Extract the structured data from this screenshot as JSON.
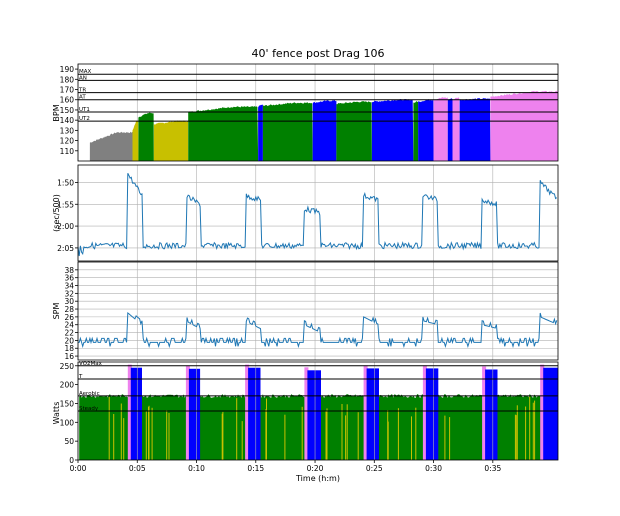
{
  "chart_data": {
    "type": "line",
    "title": "40' fence post Drag 106",
    "xlabel": "Time (h:m)",
    "x_ticks": [
      "0:00",
      "0:05",
      "0:10",
      "0:15",
      "0:20",
      "0:25",
      "0:30",
      "0:35"
    ],
    "x_tick_minutes": [
      0,
      5,
      10,
      15,
      20,
      25,
      30,
      35
    ],
    "x_range_min": [
      0,
      40.5
    ],
    "grid": true,
    "zone_colors": {
      "recovery": "#808080",
      "ut2": "#c8c000",
      "ut1": "#008000",
      "at": "#0000ff",
      "tr": "#ee82ee"
    },
    "hr_panel": {
      "ylabel": "BPM",
      "ylim": [
        100,
        195
      ],
      "yticks": [
        110,
        120,
        130,
        140,
        150,
        160,
        170,
        180,
        190
      ],
      "thresholds": [
        {
          "label": "MAX",
          "value": 185
        },
        {
          "label": "AN",
          "value": 179
        },
        {
          "label": "TR",
          "value": 167
        },
        {
          "label": "AT",
          "value": 160
        },
        {
          "label": "UT1",
          "value": 148
        },
        {
          "label": "UT2",
          "value": 139
        }
      ],
      "segments": [
        {
          "start": 1.0,
          "end": 4.6,
          "zone": "recovery",
          "hr": [
            118,
            128
          ]
        },
        {
          "start": 4.6,
          "end": 5.1,
          "zone": "ut2",
          "hr": [
            130,
            139
          ]
        },
        {
          "start": 5.1,
          "end": 6.4,
          "zone": "ut1",
          "hr": [
            143,
            147
          ]
        },
        {
          "start": 6.4,
          "end": 9.3,
          "zone": "ut2",
          "hr": [
            136,
            139
          ]
        },
        {
          "start": 9.3,
          "end": 15.2,
          "zone": "ut1",
          "hr": [
            148,
            153
          ]
        },
        {
          "start": 15.2,
          "end": 15.6,
          "zone": "at",
          "hr": [
            153,
            155
          ]
        },
        {
          "start": 15.6,
          "end": 19.8,
          "zone": "ut1",
          "hr": [
            154,
            157
          ]
        },
        {
          "start": 19.8,
          "end": 21.8,
          "zone": "at",
          "hr": [
            157,
            159
          ]
        },
        {
          "start": 21.8,
          "end": 24.8,
          "zone": "ut1",
          "hr": [
            156,
            158
          ]
        },
        {
          "start": 24.8,
          "end": 28.3,
          "zone": "at",
          "hr": [
            158,
            160
          ]
        },
        {
          "start": 28.3,
          "end": 28.7,
          "zone": "ut1",
          "hr": [
            157,
            158
          ]
        },
        {
          "start": 28.7,
          "end": 30.0,
          "zone": "at",
          "hr": [
            158,
            160
          ]
        },
        {
          "start": 30.0,
          "end": 31.2,
          "zone": "tr",
          "hr": [
            160,
            162
          ]
        },
        {
          "start": 31.2,
          "end": 31.6,
          "zone": "at",
          "hr": [
            160,
            161
          ]
        },
        {
          "start": 31.6,
          "end": 32.2,
          "zone": "tr",
          "hr": [
            160,
            162
          ]
        },
        {
          "start": 32.2,
          "end": 34.8,
          "zone": "at",
          "hr": [
            160,
            161
          ]
        },
        {
          "start": 34.8,
          "end": 40.5,
          "zone": "tr",
          "hr": [
            163,
            168
          ]
        }
      ]
    },
    "pace_panel": {
      "ylabel": "(sec/500)",
      "ylim_sec": [
        128,
        106
      ],
      "yticks_sec": [
        110,
        115,
        120,
        125
      ],
      "ytick_labels": [
        "1:50",
        "1:55",
        "2:00",
        "2:05"
      ],
      "base_sec": 124.5,
      "intervals": [
        {
          "start": 4.2,
          "end": 5.4,
          "sec": [
            108,
            113
          ]
        },
        {
          "start": 9.1,
          "end": 10.3,
          "sec": [
            113,
            115
          ]
        },
        {
          "start": 14.1,
          "end": 15.4,
          "sec": [
            113,
            114
          ]
        },
        {
          "start": 19.1,
          "end": 20.5,
          "sec": [
            116,
            117
          ]
        },
        {
          "start": 24.1,
          "end": 25.4,
          "sec": [
            113,
            114
          ]
        },
        {
          "start": 29.1,
          "end": 30.4,
          "sec": [
            113,
            114
          ]
        },
        {
          "start": 34.1,
          "end": 35.4,
          "sec": [
            114,
            115
          ]
        },
        {
          "start": 39.0,
          "end": 40.5,
          "sec": [
            110,
            114
          ]
        }
      ]
    },
    "spm_panel": {
      "ylabel": "SPM",
      "ylim": [
        15,
        40
      ],
      "yticks": [
        16,
        18,
        20,
        22,
        24,
        26,
        28,
        30,
        32,
        34,
        36,
        38
      ],
      "base": 19.5,
      "intervals": [
        {
          "start": 4.2,
          "end": 5.4,
          "spm": [
            24,
            27
          ]
        },
        {
          "start": 9.1,
          "end": 10.3,
          "spm": [
            23,
            25
          ]
        },
        {
          "start": 14.1,
          "end": 15.4,
          "spm": [
            23,
            25
          ]
        },
        {
          "start": 19.1,
          "end": 20.5,
          "spm": [
            22,
            24
          ]
        },
        {
          "start": 24.1,
          "end": 25.4,
          "spm": [
            24,
            26
          ]
        },
        {
          "start": 29.1,
          "end": 30.4,
          "spm": [
            24,
            25
          ]
        },
        {
          "start": 34.1,
          "end": 35.4,
          "spm": [
            23,
            24
          ]
        },
        {
          "start": 39.0,
          "end": 40.5,
          "spm": [
            24,
            26
          ]
        }
      ]
    },
    "power_panel": {
      "ylabel": "Watts",
      "ylim": [
        0,
        260
      ],
      "yticks": [
        0,
        50,
        100,
        150,
        200,
        250
      ],
      "thresholds": [
        {
          "label": "VO2Max",
          "value": 250
        },
        {
          "label": "T",
          "value": 215
        },
        {
          "label": "Aerobic",
          "value": 170
        },
        {
          "label": "Steady",
          "value": 130
        }
      ],
      "base_watts": 170,
      "intervals": [
        {
          "start": 4.2,
          "end": 5.4,
          "watts": 245
        },
        {
          "start": 9.1,
          "end": 10.3,
          "watts": 242
        },
        {
          "start": 14.1,
          "end": 15.4,
          "watts": 245
        },
        {
          "start": 19.1,
          "end": 20.5,
          "watts": 238
        },
        {
          "start": 24.1,
          "end": 25.4,
          "watts": 243
        },
        {
          "start": 29.1,
          "end": 30.4,
          "watts": 243
        },
        {
          "start": 34.1,
          "end": 35.4,
          "watts": 240
        },
        {
          "start": 39.0,
          "end": 40.5,
          "watts": 245
        }
      ]
    }
  }
}
